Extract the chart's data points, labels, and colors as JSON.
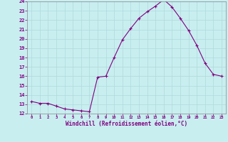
{
  "x": [
    0,
    1,
    2,
    3,
    4,
    5,
    6,
    7,
    8,
    9,
    10,
    11,
    12,
    13,
    14,
    15,
    16,
    17,
    18,
    19,
    20,
    21,
    22,
    23
  ],
  "y": [
    13.3,
    13.1,
    13.1,
    12.8,
    12.5,
    12.4,
    12.3,
    12.2,
    15.9,
    16.0,
    18.0,
    19.9,
    21.1,
    22.2,
    22.9,
    23.5,
    24.2,
    23.4,
    22.2,
    20.9,
    19.3,
    17.4,
    16.2,
    16.0
  ],
  "line_color": "#800080",
  "marker": "+",
  "bg_color": "#c8eef0",
  "grid_color": "#b0d8da",
  "xlabel": "Windchill (Refroidissement éolien,°C)",
  "xlabel_color": "#800080",
  "tick_color": "#800080",
  "ylim": [
    12,
    24
  ],
  "yticks": [
    12,
    13,
    14,
    15,
    16,
    17,
    18,
    19,
    20,
    21,
    22,
    23,
    24
  ],
  "xticks": [
    0,
    1,
    2,
    3,
    4,
    5,
    6,
    7,
    8,
    9,
    10,
    11,
    12,
    13,
    14,
    15,
    16,
    17,
    18,
    19,
    20,
    21,
    22,
    23
  ]
}
